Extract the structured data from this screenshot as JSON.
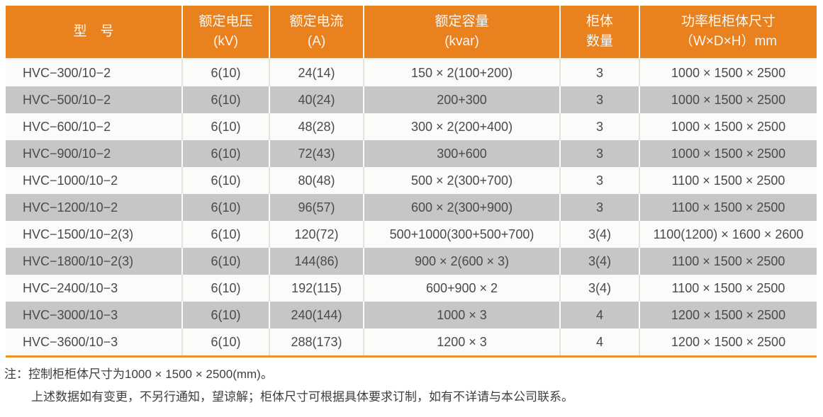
{
  "colors": {
    "header_orange": "#E8811E",
    "row_gray": "#C6C6C6",
    "row_white": "#FBFBF9",
    "bottom_border_orange": "#E89327",
    "body_text": "#4A4A4A",
    "header_text": "#FCF8F3"
  },
  "table": {
    "columns": [
      {
        "key": "model",
        "label": "型　号",
        "label2": ""
      },
      {
        "key": "voltage",
        "label": "额定电压",
        "label2": "(kV)"
      },
      {
        "key": "current",
        "label": "额定电流",
        "label2": "(A)"
      },
      {
        "key": "capacity",
        "label": "额定容量",
        "label2": "(kvar)"
      },
      {
        "key": "cabinets",
        "label": "柜体",
        "label2": "数量"
      },
      {
        "key": "dimensions",
        "label": "功率柜柜体尺寸",
        "label2": "（W×D×H）mm"
      }
    ],
    "rows": [
      {
        "model": "HVC−300/10−2",
        "voltage": "6(10)",
        "current": "24(14)",
        "capacity": "150 × 2(100+200)",
        "cabinets": "3",
        "dimensions": "1000 × 1500 × 2500"
      },
      {
        "model": "HVC−500/10−2",
        "voltage": "6(10)",
        "current": "40(24)",
        "capacity": "200+300",
        "cabinets": "3",
        "dimensions": "1000 × 1500 × 2500"
      },
      {
        "model": "HVC−600/10−2",
        "voltage": "6(10)",
        "current": "48(28)",
        "capacity": "300 × 2(200+400)",
        "cabinets": "3",
        "dimensions": "1000 × 1500 × 2500"
      },
      {
        "model": "HVC−900/10−2",
        "voltage": "6(10)",
        "current": "72(43)",
        "capacity": "300+600",
        "cabinets": "3",
        "dimensions": "1000 × 1500 × 2500"
      },
      {
        "model": "HVC−1000/10−2",
        "voltage": "6(10)",
        "current": "80(48)",
        "capacity": "500 × 2(300+700)",
        "cabinets": "3",
        "dimensions": "1100 × 1500 × 2500"
      },
      {
        "model": "HVC−1200/10−2",
        "voltage": "6(10)",
        "current": "96(57)",
        "capacity": "600 × 2(300+900)",
        "cabinets": "3",
        "dimensions": "1100 × 1500 × 2500"
      },
      {
        "model": "HVC−1500/10−2(3)",
        "voltage": "6(10)",
        "current": "120(72)",
        "capacity": "500+1000(300+500+700)",
        "cabinets": "3(4)",
        "dimensions": "1100(1200) × 1600 × 2600"
      },
      {
        "model": "HVC−1800/10−2(3)",
        "voltage": "6(10)",
        "current": "144(86)",
        "capacity": "900 × 2(600 × 3)",
        "cabinets": "3(4)",
        "dimensions": "1100 × 1500 × 2500"
      },
      {
        "model": "HVC−2400/10−3",
        "voltage": "6(10)",
        "current": "192(115)",
        "capacity": "600+900 × 2",
        "cabinets": "3(4)",
        "dimensions": "1100 × 1500 × 2500"
      },
      {
        "model": "HVC−3000/10−3",
        "voltage": "6(10)",
        "current": "240(144)",
        "capacity": "1000 × 3",
        "cabinets": "4",
        "dimensions": "1200 × 1500 × 2500"
      },
      {
        "model": "HVC−3600/10−3",
        "voltage": "6(10)",
        "current": "288(173)",
        "capacity": "1200 × 3",
        "cabinets": "4",
        "dimensions": "1200 × 1500 × 2500"
      }
    ]
  },
  "notes": {
    "label": "注：",
    "line1": "控制柜柜体尺寸为1000 × 1500 × 2500(mm)。",
    "line2": "上述数据如有变更，不另行通知，望谅解；柜体尺寸可根据具体要求订制，如有不详请与本公司联系。"
  }
}
